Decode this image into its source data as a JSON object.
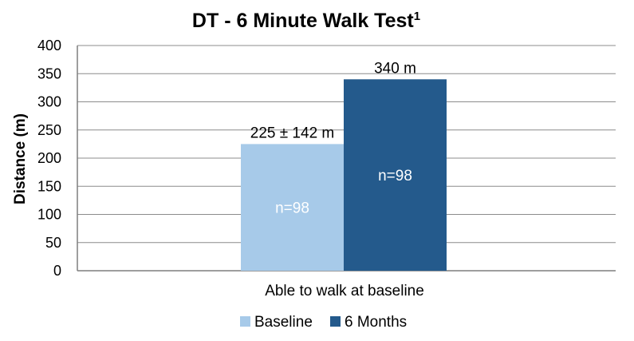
{
  "chart_data": {
    "type": "bar",
    "title": "DT - 6 Minute Walk Test",
    "title_superscript": "1",
    "xlabel": "Able to walk at baseline",
    "ylabel": "Distance (m)",
    "ylim": [
      0,
      400
    ],
    "yticks": [
      0,
      50,
      100,
      150,
      200,
      250,
      300,
      350,
      400
    ],
    "grid": true,
    "legend_position": "bottom",
    "categories": [
      "Able to walk at baseline"
    ],
    "series": [
      {
        "name": "Baseline",
        "values": [
          225
        ],
        "color": "#A7CAE9",
        "data_label": "225 ± 142 m",
        "inner_label": "n=98"
      },
      {
        "name": "6 Months",
        "values": [
          340
        ],
        "color": "#245A8C",
        "data_label": "340 m",
        "inner_label": "n=98"
      }
    ]
  }
}
